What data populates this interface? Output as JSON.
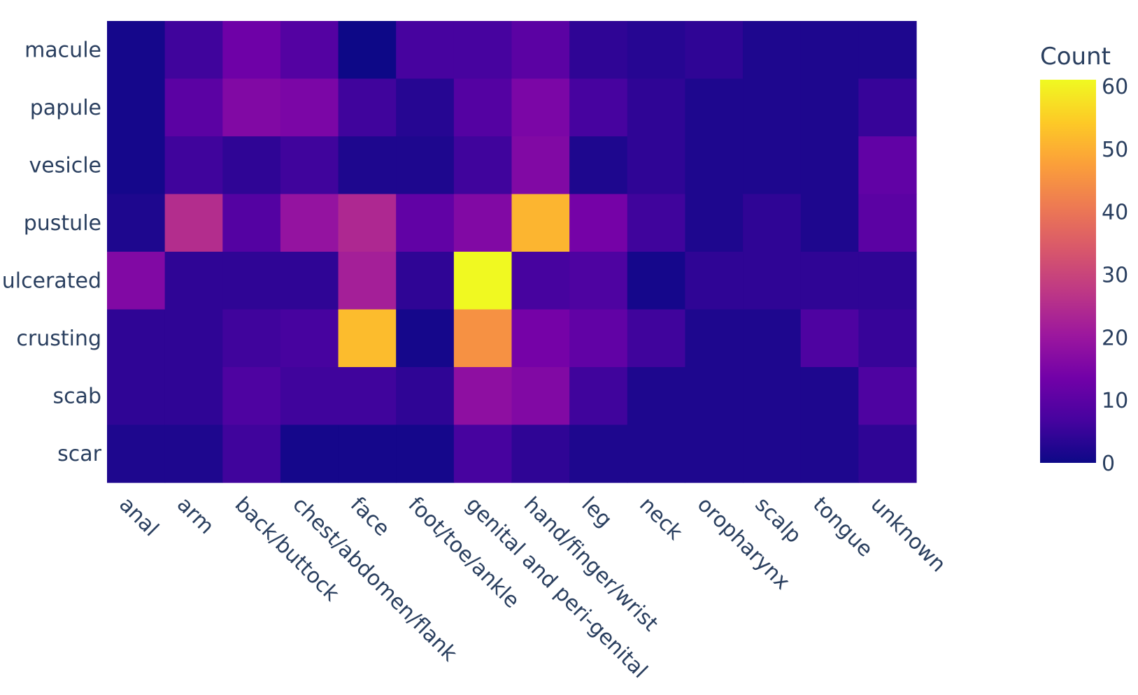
{
  "chart_data": {
    "type": "heatmap",
    "x": [
      "anal",
      "arm",
      "back/buttock",
      "chest/abdomen/flank",
      "face",
      "foot/toe/ankle",
      "genital and peri-genital",
      "hand/finger/wrist",
      "leg",
      "neck",
      "oropharynx",
      "scalp",
      "tongue",
      "unknown"
    ],
    "y": [
      "macule",
      "papule",
      "vesicle",
      "pustule",
      "ulcerated",
      "crusting",
      "scab",
      "scar"
    ],
    "z": [
      [
        1,
        6,
        13,
        9,
        0,
        7,
        7,
        10,
        4,
        3,
        4,
        2,
        2,
        2
      ],
      [
        1,
        10,
        16,
        15,
        6,
        3,
        9,
        15,
        7,
        4,
        2,
        2,
        2,
        5
      ],
      [
        1,
        6,
        4,
        6,
        2,
        2,
        6,
        16,
        2,
        4,
        2,
        2,
        2,
        11
      ],
      [
        2,
        25,
        9,
        19,
        24,
        11,
        16,
        51,
        14,
        6,
        2,
        4,
        2,
        10
      ],
      [
        16,
        4,
        4,
        4,
        22,
        4,
        61,
        7,
        8,
        1,
        4,
        4,
        4,
        4
      ],
      [
        4,
        4,
        6,
        7,
        52,
        1,
        45,
        14,
        11,
        6,
        2,
        2,
        8,
        5
      ],
      [
        4,
        4,
        8,
        6,
        6,
        4,
        18,
        16,
        6,
        2,
        2,
        2,
        2,
        8
      ],
      [
        2,
        2,
        6,
        1,
        1,
        1,
        7,
        4,
        2,
        2,
        2,
        2,
        2,
        4
      ]
    ],
    "zmin": 0,
    "zmax": 61,
    "colorscale": "plasma",
    "colorbar": {
      "title": "Count",
      "ticks": [
        "0",
        "10",
        "20",
        "30",
        "40",
        "50",
        "60"
      ],
      "tick_values": [
        0,
        10,
        20,
        30,
        40,
        50,
        60
      ]
    },
    "xlabel": "",
    "ylabel": "",
    "grid": false,
    "legend": "right"
  }
}
